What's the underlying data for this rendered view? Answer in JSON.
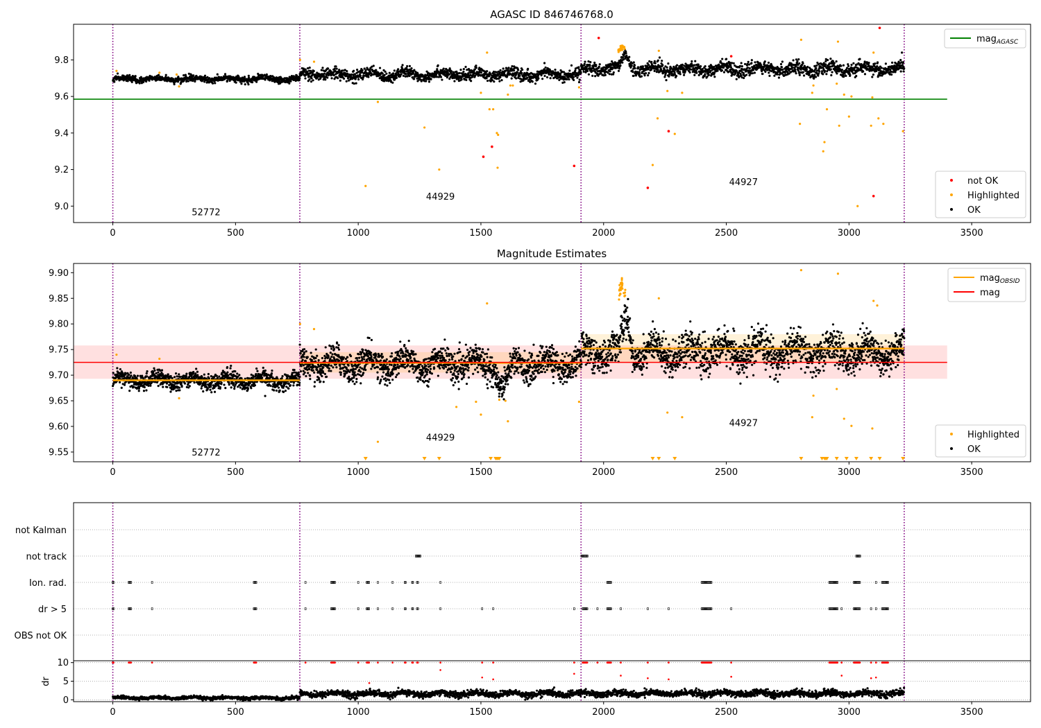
{
  "figure_title": "AGASC ID 846746768.0",
  "chart_data": [
    {
      "type": "scatter",
      "title": "AGASC ID 846746768.0",
      "xlim": [
        -160,
        3740
      ],
      "ylim": [
        8.91,
        9.995
      ],
      "xticks": [
        0,
        500,
        1000,
        1500,
        2000,
        2500,
        3000,
        3500
      ],
      "yticks": [
        9.0,
        9.2,
        9.4,
        9.6,
        9.8
      ],
      "ytick_labels": [
        "9.0",
        "9.2",
        "9.4",
        "9.6",
        "9.8"
      ],
      "obs_boundaries": [
        0,
        762,
        1908,
        3225
      ],
      "reference_lines": [
        {
          "name": "mag_AGASC",
          "y": 9.585,
          "x_range": [
            -160,
            3400
          ],
          "color": "#008000"
        }
      ],
      "obsid_labels": [
        {
          "text": "52772",
          "x": 380,
          "y": 8.95
        },
        {
          "text": "44929",
          "x": 1335,
          "y": 9.035
        },
        {
          "text": "44927",
          "x": 2570,
          "y": 9.115
        }
      ],
      "segments": [
        {
          "x_range": [
            0,
            762
          ],
          "center": 9.695,
          "spread": 0.012,
          "trend": 0
        },
        {
          "x_range": [
            762,
            1908
          ],
          "center": 9.72,
          "spread": 0.022,
          "trend": 0
        },
        {
          "x_range": [
            1908,
            3225
          ],
          "center": 9.75,
          "spread": 0.025,
          "trend": 0
        }
      ],
      "bumps": [
        {
          "x": 2075,
          "width": 25,
          "height": 0.13,
          "series": "Highlighted"
        },
        {
          "x": 2090,
          "width": 20,
          "height": 0.08,
          "series": "OK"
        }
      ],
      "highlighted_points": [
        [
          15,
          9.74
        ],
        [
          190,
          9.73
        ],
        [
          260,
          9.72
        ],
        [
          270,
          9.655
        ],
        [
          763,
          9.8
        ],
        [
          820,
          9.79
        ],
        [
          1080,
          9.57
        ],
        [
          1030,
          9.11
        ],
        [
          1270,
          9.43
        ],
        [
          1330,
          9.2
        ],
        [
          1500,
          9.62
        ],
        [
          1525,
          9.84
        ],
        [
          1535,
          9.53
        ],
        [
          1550,
          9.53
        ],
        [
          1565,
          9.4
        ],
        [
          1570,
          9.39
        ],
        [
          1568,
          9.21
        ],
        [
          1620,
          9.66
        ],
        [
          1610,
          9.61
        ],
        [
          1630,
          9.66
        ],
        [
          1900,
          9.65
        ],
        [
          2200,
          9.225
        ],
        [
          2220,
          9.48
        ],
        [
          2225,
          9.85
        ],
        [
          2260,
          9.63
        ],
        [
          2290,
          9.395
        ],
        [
          2320,
          9.62
        ],
        [
          2800,
          9.45
        ],
        [
          2805,
          9.91
        ],
        [
          2850,
          9.62
        ],
        [
          2855,
          9.66
        ],
        [
          2895,
          9.3
        ],
        [
          2900,
          9.35
        ],
        [
          2910,
          9.53
        ],
        [
          2950,
          9.67
        ],
        [
          2955,
          9.9
        ],
        [
          2960,
          9.44
        ],
        [
          2980,
          9.61
        ],
        [
          3000,
          9.49
        ],
        [
          3010,
          9.6
        ],
        [
          3035,
          9.0
        ],
        [
          3090,
          9.44
        ],
        [
          3095,
          9.595
        ],
        [
          3100,
          9.84
        ],
        [
          3120,
          9.48
        ],
        [
          3140,
          9.45
        ],
        [
          3220,
          9.41
        ]
      ],
      "not_ok_points": [
        [
          1510,
          9.27
        ],
        [
          1545,
          9.325
        ],
        [
          1880,
          9.22
        ],
        [
          1980,
          9.92
        ],
        [
          2180,
          9.1
        ],
        [
          2265,
          9.41
        ],
        [
          2520,
          9.82
        ],
        [
          3100,
          9.055
        ],
        [
          3125,
          9.975
        ]
      ],
      "legends": [
        {
          "position": "top-right",
          "entries": [
            {
              "label": "mag",
              "subscript": "AGASC",
              "kind": "line",
              "color": "#008000"
            }
          ]
        },
        {
          "position": "bottom-right",
          "entries": [
            {
              "label": "not OK",
              "kind": "marker",
              "color": "#ff0000"
            },
            {
              "label": "Highlighted",
              "kind": "marker",
              "color": "#ffa500"
            },
            {
              "label": "OK",
              "kind": "marker",
              "color": "#000000"
            }
          ]
        }
      ]
    },
    {
      "type": "scatter",
      "title": "Magnitude Estimates",
      "xlim": [
        -160,
        3740
      ],
      "ylim": [
        9.531,
        9.918
      ],
      "xticks": [
        0,
        500,
        1000,
        1500,
        2000,
        2500,
        3000,
        3500
      ],
      "yticks": [
        9.55,
        9.6,
        9.65,
        9.7,
        9.75,
        9.8,
        9.85,
        9.9
      ],
      "ytick_labels": [
        "9.55",
        "9.60",
        "9.65",
        "9.70",
        "9.75",
        "9.80",
        "9.85",
        "9.90"
      ],
      "obs_boundaries": [
        0,
        762,
        1908,
        3225
      ],
      "mag_line": {
        "y": 9.725,
        "band": [
          9.693,
          9.758
        ],
        "x_range": [
          -160,
          3400
        ],
        "color": "#ff0000"
      },
      "obsid_mag": [
        {
          "x_range": [
            0,
            762
          ],
          "y": 9.69,
          "band": [
            9.686,
            9.694
          ]
        },
        {
          "x_range": [
            762,
            1908
          ],
          "y": 9.724,
          "band": [
            9.705,
            9.745
          ]
        },
        {
          "x_range": [
            1908,
            3225
          ],
          "y": 9.752,
          "band": [
            9.725,
            9.78
          ]
        }
      ],
      "obsid_labels": [
        {
          "text": "52772",
          "x": 380,
          "y": 9.543
        },
        {
          "text": "44929",
          "x": 1335,
          "y": 9.572
        },
        {
          "text": "44927",
          "x": 2570,
          "y": 9.601
        }
      ],
      "segments": [
        {
          "x_range": [
            0,
            762
          ],
          "center": 9.69,
          "spread": 0.011,
          "trend": 0
        },
        {
          "x_range": [
            762,
            1908
          ],
          "center": 9.722,
          "spread": 0.02,
          "trend": 0
        },
        {
          "x_range": [
            1908,
            3225
          ],
          "center": 9.745,
          "spread": 0.024,
          "trend": 0
        }
      ],
      "bumps": [
        {
          "x": 2075,
          "width": 22,
          "height": 0.14,
          "series": "Highlighted"
        },
        {
          "x": 2092,
          "width": 18,
          "height": 0.07,
          "series": "OK"
        },
        {
          "x": 1590,
          "width": 30,
          "height": -0.04,
          "series": "OK"
        }
      ],
      "highlighted_points": [
        [
          15,
          9.74
        ],
        [
          190,
          9.732
        ],
        [
          270,
          9.655
        ],
        [
          763,
          9.8
        ],
        [
          820,
          9.79
        ],
        [
          1080,
          9.57
        ],
        [
          1400,
          9.638
        ],
        [
          1480,
          9.648
        ],
        [
          1500,
          9.623
        ],
        [
          1525,
          9.84
        ],
        [
          1575,
          9.652
        ],
        [
          1600,
          9.65
        ],
        [
          1610,
          9.61
        ],
        [
          1900,
          9.648
        ],
        [
          2225,
          9.85
        ],
        [
          2260,
          9.627
        ],
        [
          2320,
          9.618
        ],
        [
          2805,
          9.905
        ],
        [
          2850,
          9.618
        ],
        [
          2855,
          9.66
        ],
        [
          2950,
          9.673
        ],
        [
          2955,
          9.898
        ],
        [
          2980,
          9.615
        ],
        [
          3010,
          9.601
        ],
        [
          3095,
          9.596
        ],
        [
          3100,
          9.845
        ],
        [
          3115,
          9.836
        ]
      ],
      "clipped_markers_x": [
        1030,
        1270,
        1330,
        1540,
        1560,
        1565,
        1570,
        1575,
        2200,
        2225,
        2290,
        2805,
        2890,
        2900,
        2905,
        2910,
        2950,
        2990,
        3030,
        3090,
        3125,
        3220
      ],
      "legends": [
        {
          "position": "top-right",
          "entries": [
            {
              "label": "mag",
              "subscript": "OBSID",
              "kind": "line",
              "color": "#ffa500"
            },
            {
              "label": "mag",
              "kind": "line",
              "color": "#ff0000"
            }
          ]
        },
        {
          "position": "bottom-right",
          "entries": [
            {
              "label": "Highlighted",
              "kind": "marker",
              "color": "#ffa500"
            },
            {
              "label": "OK",
              "kind": "marker",
              "color": "#000000"
            }
          ]
        }
      ]
    },
    {
      "type": "scatter",
      "title": "",
      "xlim": [
        -160,
        3740
      ],
      "categories": [
        "not Kalman",
        "not track",
        "Ion. rad.",
        "dr > 5",
        "OBS not OK"
      ],
      "obs_boundaries": [
        0,
        762,
        1908,
        3225
      ],
      "flag_groups": {
        "not track": [
          [
            1235,
            1255
          ],
          [
            1910,
            1935
          ],
          [
            3030,
            3045
          ]
        ],
        "Ion. rad.": [
          [
            0,
            3
          ],
          [
            65,
            75
          ],
          [
            160,
            162
          ],
          [
            575,
            585
          ],
          [
            785,
            787
          ],
          [
            890,
            905
          ],
          [
            1000,
            1002
          ],
          [
            1035,
            1045
          ],
          [
            1080,
            1082
          ],
          [
            1140,
            1142
          ],
          [
            1190,
            1195
          ],
          [
            1220,
            1223
          ],
          [
            1240,
            1243
          ],
          [
            1335,
            1337
          ],
          [
            2015,
            2030
          ],
          [
            2400,
            2440
          ],
          [
            2920,
            2955
          ],
          [
            3020,
            3045
          ],
          [
            3110,
            3112
          ],
          [
            3135,
            3160
          ]
        ],
        "dr > 5": [
          [
            0,
            3
          ],
          [
            65,
            75
          ],
          [
            160,
            162
          ],
          [
            575,
            585
          ],
          [
            785,
            787
          ],
          [
            890,
            905
          ],
          [
            1000,
            1002
          ],
          [
            1035,
            1045
          ],
          [
            1080,
            1082
          ],
          [
            1140,
            1142
          ],
          [
            1190,
            1195
          ],
          [
            1220,
            1223
          ],
          [
            1240,
            1243
          ],
          [
            1335,
            1337
          ],
          [
            1505,
            1507
          ],
          [
            1550,
            1552
          ],
          [
            1880,
            1882
          ],
          [
            1915,
            1935
          ],
          [
            1975,
            1977
          ],
          [
            2015,
            2030
          ],
          [
            2070,
            2072
          ],
          [
            2180,
            2182
          ],
          [
            2265,
            2267
          ],
          [
            2400,
            2440
          ],
          [
            2520,
            2522
          ],
          [
            2920,
            2955
          ],
          [
            2970,
            2972
          ],
          [
            3020,
            3045
          ],
          [
            3090,
            3092
          ],
          [
            3110,
            3112
          ],
          [
            3135,
            3160
          ]
        ]
      }
    },
    {
      "type": "scatter",
      "title": "",
      "ylabel": "dr",
      "xlim": [
        -160,
        3740
      ],
      "ylim": [
        -0.5,
        10.5
      ],
      "xticks": [
        0,
        500,
        1000,
        1500,
        2000,
        2500,
        3000,
        3500
      ],
      "xtick_labels": [
        "0",
        "500",
        "1000",
        "1500",
        "2000",
        "2500",
        "3000",
        "3500"
      ],
      "yticks": [
        0,
        5,
        10
      ],
      "ytick_labels": [
        "0",
        "5",
        "10"
      ],
      "obs_boundaries": [
        0,
        762,
        1908,
        3225
      ],
      "segments": [
        {
          "x_range": [
            0,
            762
          ],
          "center": 0.5,
          "spread": 0.3
        },
        {
          "x_range": [
            762,
            1908
          ],
          "center": 1.6,
          "spread": 0.6
        },
        {
          "x_range": [
            1908,
            3225
          ],
          "center": 1.7,
          "spread": 0.6
        }
      ],
      "red_scatter": [
        [
          1045,
          4.5
        ],
        [
          1505,
          6
        ],
        [
          1550,
          5.5
        ],
        [
          1880,
          7
        ],
        [
          2070,
          6.5
        ],
        [
          2180,
          5.8
        ],
        [
          2265,
          5.5
        ],
        [
          2520,
          6.2
        ],
        [
          2970,
          6.5
        ],
        [
          3090,
          5.8
        ],
        [
          3110,
          6
        ],
        [
          1335,
          8
        ]
      ]
    }
  ],
  "colors": {
    "ok": "#000000",
    "highlighted": "#ffa500",
    "not_ok": "#ff0000",
    "mag_agasc": "#008000",
    "mag": "#ff0000",
    "mag_obsid": "#ffa500",
    "boundary": "#800080",
    "grid": "#b0b0b0"
  }
}
